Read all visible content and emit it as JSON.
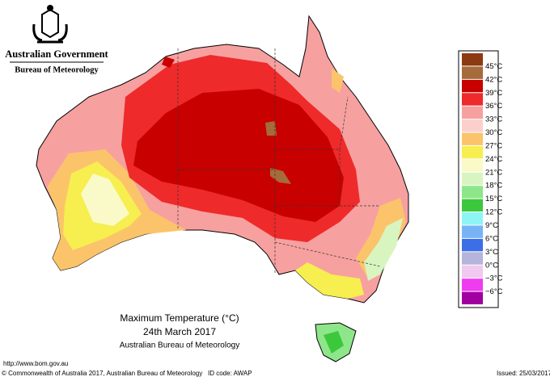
{
  "header": {
    "government": "Australian Government",
    "agency": "Bureau of Meteorology"
  },
  "legend": {
    "colors": [
      "#8c3a10",
      "#a56b3b",
      "#c80000",
      "#ee2a2a",
      "#f7a0a0",
      "#fbd0cc",
      "#fbc46a",
      "#f7ee50",
      "#fafac8",
      "#d8f5c0",
      "#8ee68a",
      "#3cc83c",
      "#8ef5f5",
      "#78b4f5",
      "#3c6ee6",
      "#b4b4dc",
      "#f0c8f0",
      "#f03cf0",
      "#a000a0"
    ],
    "labels": [
      "45°C",
      "42°C",
      "39°C",
      "36°C",
      "33°C",
      "30°C",
      "27°C",
      "24°C",
      "21°C",
      "18°C",
      "15°C",
      "12°C",
      "9°C",
      "6°C",
      "3°C",
      "0°C",
      "−3°C",
      "−6°C"
    ]
  },
  "title": {
    "line1": "Maximum Temperature (°C)",
    "line2": "24th March 2017",
    "line3": "Australian Bureau of Meteorology"
  },
  "footer": {
    "url": "http://www.bom.gov.au",
    "copyright": "© Commonwealth of Australia 2017, Australian Bureau of Meteorology",
    "id_code": "ID code: AWAP",
    "issued": "Issued: 25/03/2017"
  }
}
